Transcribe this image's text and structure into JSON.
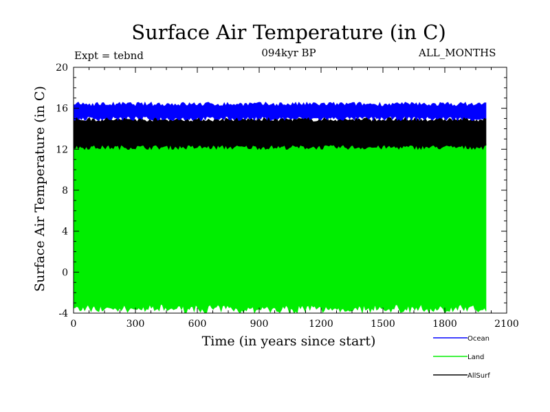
{
  "chart_data": {
    "type": "line",
    "title": "Surface Air Temperature (in C)",
    "subtitle": "094kyr BP",
    "expt_label": "Expt = tebnd",
    "period_label": "ALL_MONTHS",
    "xlabel": "Time (in years since start)",
    "ylabel": "Surface Air Temperature (in C)",
    "xlim": [
      0,
      2100
    ],
    "ylim": [
      -4,
      20
    ],
    "x_ticks": [
      "0",
      "300",
      "600",
      "900",
      "1200",
      "1500",
      "1800",
      "2100"
    ],
    "y_ticks": [
      "-4",
      "0",
      "4",
      "8",
      "12",
      "16",
      "20"
    ],
    "x_range_of_data": [
      0,
      2000
    ],
    "series": [
      {
        "name": "Ocean",
        "color": "#0000ff",
        "band": [
          15.0,
          16.4
        ]
      },
      {
        "name": "AllSurf",
        "color": "#000000",
        "band": [
          12.2,
          14.9
        ]
      },
      {
        "name": "Land",
        "color": "#00ee00",
        "band": [
          -3.6,
          12.7
        ]
      }
    ],
    "legend": [
      "Ocean",
      "Land",
      "AllSurf"
    ]
  }
}
